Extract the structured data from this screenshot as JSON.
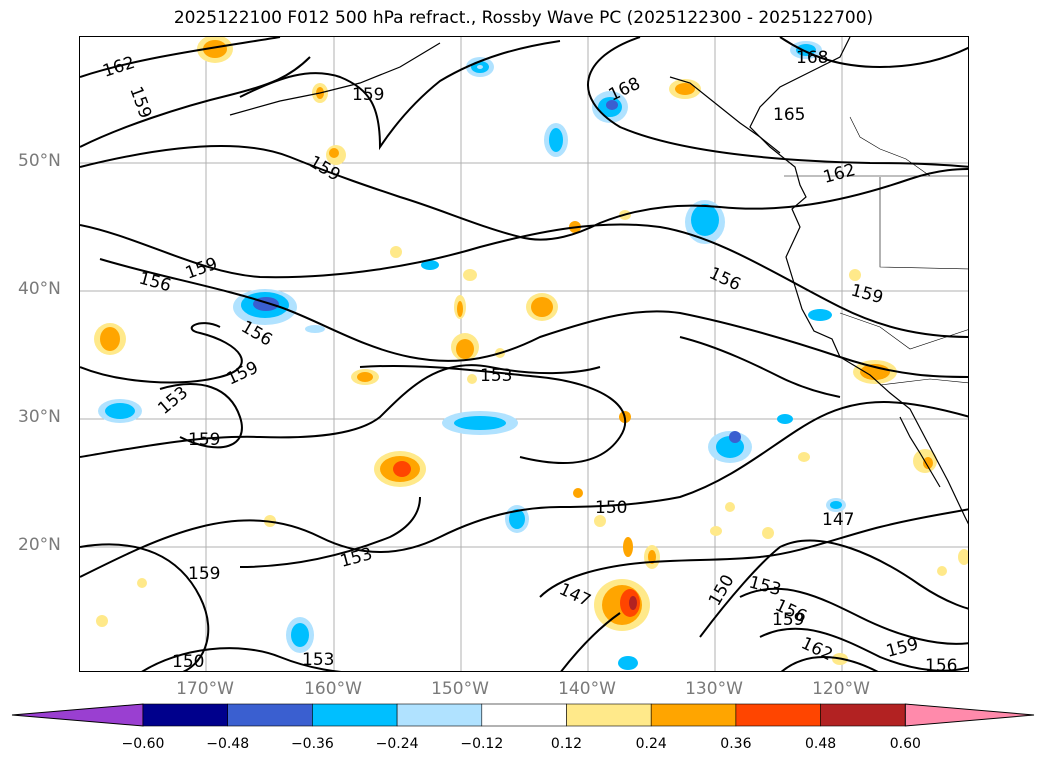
{
  "title": "2025122100 F012 500 hPa refract., Rossby Wave PC (2025122300 - 2025122700)",
  "map": {
    "lat_labels": [
      "50°N",
      "40°N",
      "30°N",
      "20°N"
    ],
    "lon_labels": [
      "170°W",
      "160°W",
      "150°W",
      "140°W",
      "130°W",
      "120°W"
    ],
    "contour_labels": [
      "162",
      "159",
      "159",
      "168",
      "168",
      "165",
      "159",
      "162",
      "156",
      "159",
      "156",
      "159",
      "156",
      "153",
      "159",
      "153",
      "153",
      "150",
      "147",
      "150",
      "153",
      "156",
      "159",
      "162",
      "159",
      "156",
      "150",
      "153",
      "159",
      "147",
      "159"
    ]
  },
  "colorbar": {
    "ticks": [
      "−0.60",
      "−0.48",
      "−0.36",
      "−0.24",
      "−0.12",
      "0.12",
      "0.24",
      "0.36",
      "0.48",
      "0.60"
    ],
    "colors": [
      "#9a3fd1",
      "#00008c",
      "#3a5fd0",
      "#00bfff",
      "#b0e2ff",
      "#ffffff",
      "#ffe98a",
      "#ffa500",
      "#ff4500",
      "#b22222",
      "#ff8aab"
    ]
  }
}
